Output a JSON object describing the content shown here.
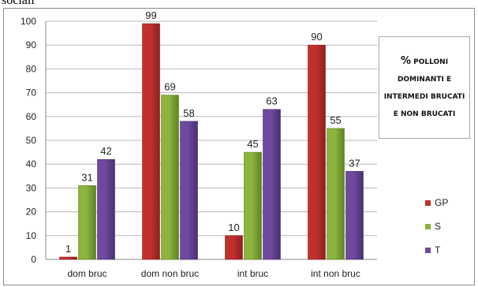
{
  "page": {
    "top_text": "sociali"
  },
  "colors": {
    "GP": "#c0312e",
    "S": "#8db43c",
    "T": "#6e4a9e"
  },
  "chart_data": {
    "type": "bar",
    "title": "% POLLONI DOMINANTI E INTERMEDI BRUCATI E NON BRUCATI",
    "title_pct": "%",
    "title_rest": "POLLONI DOMINANTI E INTERMEDI BRUCATI E NON BRUCATI",
    "categories": [
      "dom bruc",
      "dom non bruc",
      "int bruc",
      "int non bruc"
    ],
    "series": [
      {
        "name": "GP",
        "values": [
          1,
          99,
          10,
          90
        ]
      },
      {
        "name": "S",
        "values": [
          31,
          69,
          45,
          55
        ]
      },
      {
        "name": "T",
        "values": [
          42,
          58,
          63,
          37
        ]
      }
    ],
    "ylim": [
      0,
      100
    ],
    "yticks": [
      "0",
      "10",
      "20",
      "30",
      "40",
      "50",
      "60",
      "70",
      "80",
      "90",
      "100"
    ],
    "grid": true,
    "legend_position": "right"
  }
}
